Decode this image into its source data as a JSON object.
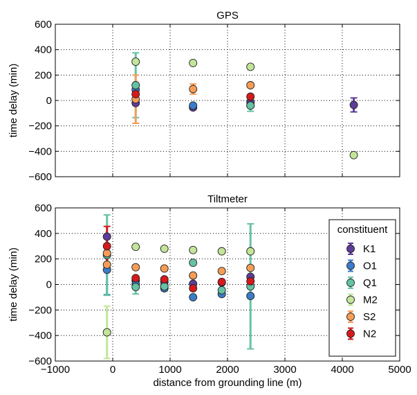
{
  "figure": {
    "xlabel": "distance from grounding line (m)",
    "ylabel": "time delay (min)"
  },
  "legend": {
    "title": "constituent",
    "placement": "right, lower panel"
  },
  "colors": {
    "K1": "#5e3c99",
    "O1": "#3a7dc9",
    "Q1": "#66c2a5",
    "M2": "#c3e59a",
    "S2": "#f59d57",
    "N2": "#d7191c"
  },
  "chart_data": [
    {
      "type": "scatter",
      "title": "GPS",
      "xlabel": "",
      "ylabel": "time delay (min)",
      "xlim": [
        -1000,
        5000
      ],
      "ylim": [
        -600,
        600
      ],
      "xticks": [
        -1000,
        0,
        1000,
        2000,
        3000,
        4000,
        5000
      ],
      "yticks": [
        -600,
        -400,
        -200,
        0,
        200,
        400,
        600
      ],
      "grid": true,
      "error_bars": "vertical",
      "series": [
        {
          "name": "K1",
          "points": [
            {
              "x": 400,
              "y": -20
            },
            {
              "x": 1400,
              "y": -55
            },
            {
              "x": 2400,
              "y": -15
            },
            {
              "x": 4200,
              "y": -35,
              "err": 55
            }
          ]
        },
        {
          "name": "O1",
          "points": [
            {
              "x": 400,
              "y": 85
            },
            {
              "x": 1400,
              "y": -40
            },
            {
              "x": 2400,
              "y": -40
            }
          ]
        },
        {
          "name": "Q1",
          "points": [
            {
              "x": 400,
              "y": 120,
              "err": 255
            },
            {
              "x": 2400,
              "y": -40,
              "err": 45
            }
          ]
        },
        {
          "name": "M2",
          "points": [
            {
              "x": 400,
              "y": 305
            },
            {
              "x": 1400,
              "y": 295
            },
            {
              "x": 2400,
              "y": 265
            },
            {
              "x": 4200,
              "y": -430
            }
          ]
        },
        {
          "name": "S2",
          "points": [
            {
              "x": 400,
              "y": 10,
              "err": 190
            },
            {
              "x": 1400,
              "y": 90,
              "err": 40
            },
            {
              "x": 2400,
              "y": 120
            }
          ]
        },
        {
          "name": "N2",
          "points": [
            {
              "x": 400,
              "y": 50
            },
            {
              "x": 2400,
              "y": 30
            }
          ]
        }
      ]
    },
    {
      "type": "scatter",
      "title": "Tiltmeter",
      "xlabel": "distance from grounding line (m)",
      "ylabel": "time delay (min)",
      "xlim": [
        -1000,
        5000
      ],
      "ylim": [
        -600,
        600
      ],
      "xticks": [
        -1000,
        0,
        1000,
        2000,
        3000,
        4000,
        5000
      ],
      "yticks": [
        -600,
        -400,
        -200,
        0,
        200,
        400,
        600
      ],
      "grid": true,
      "error_bars": "vertical",
      "series": [
        {
          "name": "K1",
          "points": [
            {
              "x": -100,
              "y": 375
            },
            {
              "x": 400,
              "y": 30
            },
            {
              "x": 900,
              "y": 20
            },
            {
              "x": 1400,
              "y": 5
            },
            {
              "x": 1900,
              "y": 15
            },
            {
              "x": 2400,
              "y": 60
            }
          ]
        },
        {
          "name": "O1",
          "points": [
            {
              "x": -100,
              "y": 115,
              "err": 195
            },
            {
              "x": 400,
              "y": 0
            },
            {
              "x": 900,
              "y": -30
            },
            {
              "x": 1400,
              "y": -100
            },
            {
              "x": 1900,
              "y": -75
            },
            {
              "x": 2400,
              "y": -90
            }
          ]
        },
        {
          "name": "Q1",
          "points": [
            {
              "x": -100,
              "y": 230,
              "err": 315
            },
            {
              "x": 400,
              "y": -20,
              "err": 55
            },
            {
              "x": 900,
              "y": -15,
              "err": 35
            },
            {
              "x": 1400,
              "y": 170
            },
            {
              "x": 1900,
              "y": -45
            },
            {
              "x": 2400,
              "y": -15,
              "err": 490
            }
          ]
        },
        {
          "name": "M2",
          "points": [
            {
              "x": -100,
              "y": -375,
              "err": 205
            },
            {
              "x": 400,
              "y": 295
            },
            {
              "x": 900,
              "y": 280
            },
            {
              "x": 1400,
              "y": 270
            },
            {
              "x": 1900,
              "y": 260
            },
            {
              "x": 2400,
              "y": 260
            }
          ]
        },
        {
          "name": "S2",
          "points": [
            {
              "x": -100,
              "y": 245
            },
            {
              "x": -100,
              "y": 155
            },
            {
              "x": 400,
              "y": 135
            },
            {
              "x": 900,
              "y": 125
            },
            {
              "x": 1400,
              "y": 70
            },
            {
              "x": 1900,
              "y": 105
            },
            {
              "x": 2400,
              "y": 130
            }
          ]
        },
        {
          "name": "N2",
          "points": [
            {
              "x": -100,
              "y": 300,
              "err": 155
            },
            {
              "x": 400,
              "y": 50
            },
            {
              "x": 900,
              "y": 40
            },
            {
              "x": 1400,
              "y": -30
            },
            {
              "x": 1900,
              "y": 20
            },
            {
              "x": 2400,
              "y": 25
            }
          ]
        }
      ]
    }
  ]
}
